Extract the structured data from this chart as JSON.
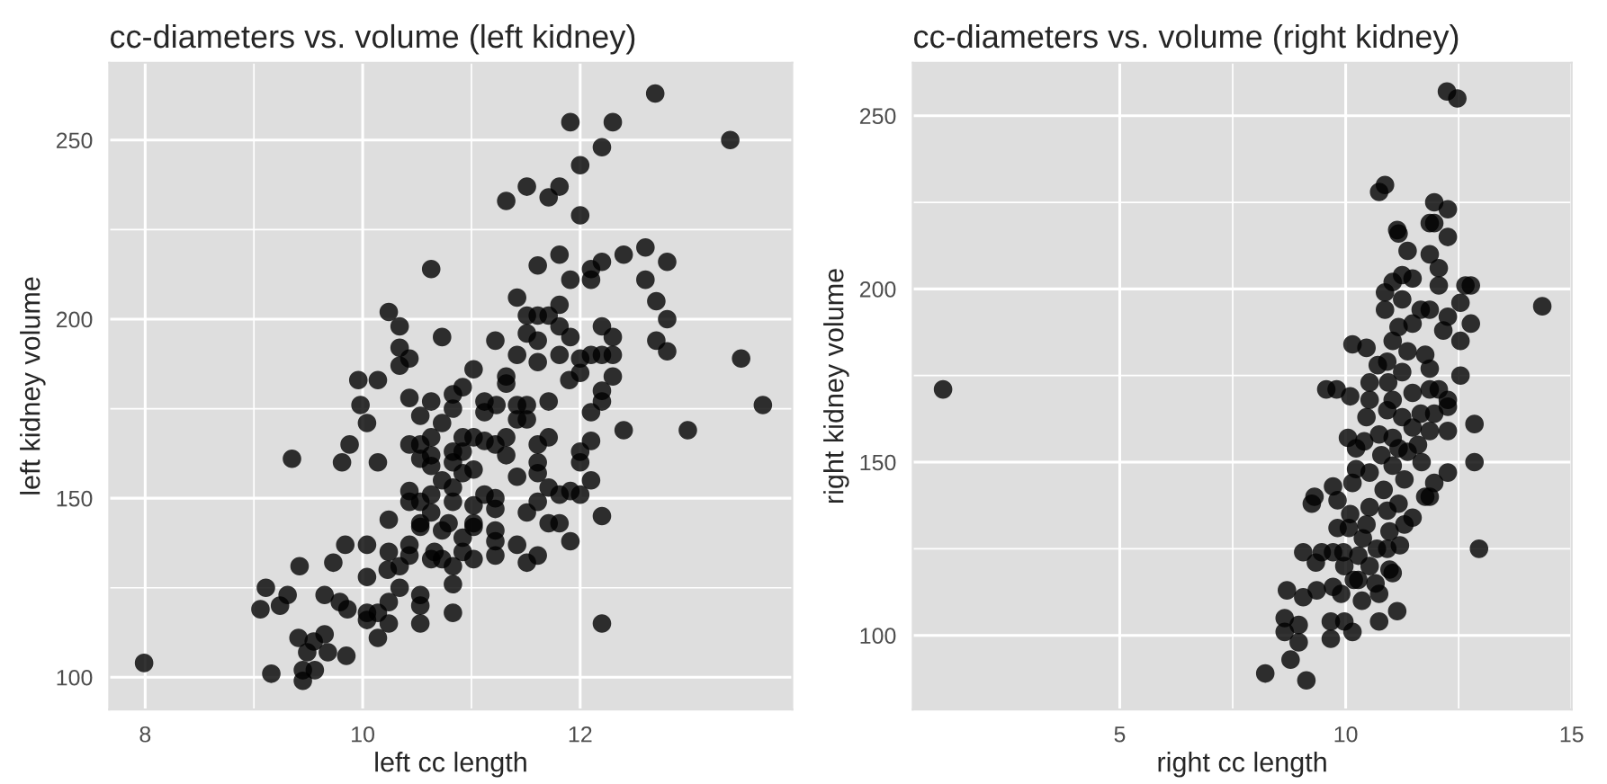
{
  "chart_data": [
    {
      "type": "scatter",
      "title": "cc-diameters vs. volume (left kidney)",
      "xlabel": "left cc length",
      "ylabel": "left kidney volume",
      "color": "#000000",
      "grid": true,
      "xlim": [
        7.67,
        13.95
      ],
      "ylim": [
        91,
        271.6
      ],
      "xticks": [
        8,
        10,
        12
      ],
      "yticks": [
        100,
        150,
        200,
        250
      ],
      "x": [
        7.99,
        12.69,
        11.91,
        12.3,
        13.38,
        12.2,
        12.0,
        11.51,
        11.81,
        11.71,
        11.32,
        12.0,
        12.6,
        12.8,
        12.4,
        11.81,
        12.2,
        11.61,
        12.1,
        10.63,
        12.1,
        11.91,
        12.6,
        11.42,
        12.7,
        11.81,
        11.51,
        11.71,
        11.61,
        12.8,
        10.24,
        10.34,
        11.81,
        12.2,
        11.51,
        11.91,
        10.73,
        12.3,
        11.61,
        11.22,
        12.7,
        10.34,
        11.42,
        10.43,
        11.81,
        13.48,
        12.0,
        12.1,
        12.2,
        12.3,
        12.8,
        11.61,
        10.34,
        12.0,
        12.3,
        11.02,
        11.9,
        11.32,
        9.96,
        10.14,
        10.92,
        11.32,
        10.43,
        10.83,
        12.2,
        12.2,
        10.63,
        11.12,
        11.71,
        11.23,
        11.42,
        11.51,
        13.68,
        9.98,
        10.83,
        12.1,
        11.12,
        10.53,
        11.42,
        11.51,
        10.04,
        10.73,
        12.99,
        12.4,
        10.92,
        10.63,
        11.02,
        11.32,
        11.71,
        12.1,
        11.12,
        11.22,
        10.53,
        10.43,
        10.83,
        10.92,
        11.61,
        10.63,
        11.32,
        12.0,
        9.88,
        9.35,
        9.81,
        10.14,
        10.53,
        10.83,
        11.61,
        12.0,
        10.63,
        11.02,
        10.92,
        11.42,
        11.61,
        12.1,
        11.71,
        11.81,
        11.91,
        12.0,
        10.43,
        10.63,
        11.12,
        11.22,
        10.83,
        10.73,
        10.43,
        10.53,
        10.83,
        11.61,
        11.02,
        11.22,
        11.51,
        10.63,
        11.71,
        11.81,
        12.2,
        10.24,
        10.53,
        11.02,
        10.79,
        11.22,
        10.73,
        10.53,
        11.02,
        10.92,
        11.22,
        11.91,
        10.04,
        10.43,
        11.42,
        9.84,
        10.24,
        10.92,
        10.66,
        10.43,
        11.22,
        11.61,
        10.63,
        11.02,
        11.51,
        10.73,
        10.34,
        10.23,
        9.42,
        10.83,
        9.73,
        10.04,
        10.83,
        10.34,
        9.11,
        9.65,
        10.53,
        9.31,
        9.79,
        10.24,
        9.24,
        10.53,
        9.06,
        9.86,
        10.04,
        10.83,
        10.14,
        10.04,
        10.24,
        10.53,
        12.2,
        9.41,
        9.65,
        10.14,
        9.55,
        9.49,
        9.68,
        9.85,
        9.16,
        9.45,
        9.56,
        9.45
      ],
      "values": [
        104,
        263,
        255,
        255,
        250,
        248,
        243,
        237,
        237,
        234,
        233,
        229,
        220,
        216,
        218,
        218,
        216,
        215,
        214,
        214,
        211,
        211,
        211,
        206,
        205,
        204,
        201,
        201,
        201,
        200,
        202,
        198,
        198,
        198,
        196,
        195,
        195,
        195,
        194,
        194,
        194,
        192,
        190,
        189,
        190,
        189,
        189,
        190,
        190,
        190,
        191,
        188,
        187,
        185,
        184,
        186,
        183,
        184,
        183,
        183,
        181,
        182,
        178,
        179,
        180,
        177,
        177,
        177,
        177,
        176,
        176,
        176,
        176,
        176,
        175,
        174,
        174,
        173,
        172,
        172,
        171,
        171,
        169,
        169,
        167,
        167,
        167,
        167,
        167,
        166,
        166,
        165,
        165,
        165,
        163,
        163,
        165,
        162,
        162,
        163,
        165,
        161,
        160,
        160,
        161,
        160,
        160,
        160,
        159,
        158,
        157,
        156,
        157,
        155,
        153,
        151,
        152,
        151,
        152,
        151,
        151,
        150,
        153,
        155,
        149,
        149,
        149,
        149,
        148,
        147,
        146,
        146,
        143,
        143,
        145,
        144,
        143,
        143,
        143,
        141,
        141,
        142,
        142,
        139,
        138,
        138,
        137,
        137,
        137,
        137,
        135,
        135,
        135,
        134,
        134,
        134,
        133,
        133,
        132,
        133,
        131,
        130,
        131,
        131,
        132,
        128,
        126,
        125,
        125,
        123,
        123,
        123,
        121,
        121,
        120,
        120,
        119,
        119,
        118,
        118,
        118,
        116,
        115,
        115,
        115,
        111,
        112,
        111,
        110,
        107,
        107,
        106,
        101,
        102,
        102,
        99
      ]
    },
    {
      "type": "scatter",
      "title": "cc-diameters vs. volume (right kidney)",
      "xlabel": "right cc length",
      "ylabel": "right kidney volume",
      "color": "#000000",
      "grid": true,
      "xlim": [
        0.42,
        15.0
      ],
      "ylim": [
        78.6,
        265.3
      ],
      "xticks": [
        5,
        10,
        15
      ],
      "yticks": [
        100,
        150,
        200,
        250
      ],
      "x": [
        1.09,
        14.35,
        12.24,
        12.47,
        10.87,
        10.74,
        11.96,
        12.26,
        11.86,
        11.96,
        11.14,
        11.17,
        12.26,
        11.37,
        11.86,
        12.06,
        11.25,
        11.48,
        11.04,
        12.06,
        12.65,
        12.77,
        10.87,
        11.25,
        12.54,
        11.86,
        11.66,
        10.87,
        11.48,
        12.26,
        12.77,
        12.16,
        11.17,
        12.54,
        11.04,
        10.15,
        10.46,
        11.37,
        11.76,
        10.92,
        10.71,
        11.86,
        11.25,
        12.54,
        10.94,
        10.53,
        12.06,
        11.86,
        9.57,
        9.8,
        10.1,
        11.48,
        12.26,
        10.53,
        11.04,
        12.26,
        10.92,
        11.96,
        11.66,
        11.25,
        10.46,
        12.85,
        11.48,
        11.86,
        12.26,
        10.74,
        11.04,
        10.05,
        10.41,
        11.6,
        10.23,
        11.17,
        11.37,
        10.79,
        11.68,
        12.85,
        10.23,
        11.04,
        10.53,
        12.26,
        11.3,
        11.96,
        9.72,
        10.15,
        10.84,
        11.76,
        11.86,
        9.31,
        9.82,
        11.17,
        9.25,
        10.53,
        11.48,
        10.1,
        10.92,
        10.46,
        11.3,
        10.07,
        9.82,
        10.97,
        10.38,
        11.2,
        12.95,
        10.69,
        10.92,
        9.06,
        9.95,
        9.47,
        9.72,
        10.28,
        9.97,
        9.34,
        10.53,
        10.97,
        11.04,
        10.18,
        10.28,
        10.66,
        9.36,
        8.7,
        9.9,
        10.36,
        10.74,
        9.72,
        9.06,
        11.14,
        8.65,
        8.96,
        9.67,
        10.74,
        10.15,
        8.65,
        9.97,
        8.96,
        9.67,
        8.78,
        8.22,
        9.13
      ],
      "values": [
        171,
        195,
        257,
        255,
        230,
        228,
        225,
        223,
        219,
        219,
        217,
        216,
        215,
        211,
        210,
        206,
        204,
        203,
        202,
        201,
        201,
        201,
        199,
        197,
        196,
        194,
        194,
        194,
        190,
        192,
        190,
        188,
        189,
        185,
        185,
        184,
        183,
        182,
        181,
        179,
        178,
        177,
        176,
        175,
        173,
        173,
        171,
        171,
        171,
        171,
        169,
        170,
        168,
        168,
        168,
        166,
        165,
        164,
        164,
        163,
        163,
        161,
        160,
        159,
        159,
        158,
        157,
        157,
        156,
        155,
        154,
        154,
        153,
        152,
        150,
        150,
        148,
        149,
        147,
        147,
        145,
        144,
        143,
        144,
        142,
        140,
        140,
        140,
        139,
        138,
        138,
        137,
        134,
        135,
        136,
        132,
        132,
        131,
        131,
        130,
        128,
        126,
        125,
        125,
        125,
        124,
        124,
        124,
        124,
        123,
        120,
        121,
        120,
        119,
        118,
        116,
        116,
        115,
        113,
        113,
        112,
        110,
        112,
        114,
        111,
        107,
        105,
        103,
        104,
        104,
        101,
        101,
        104,
        98,
        99,
        93,
        89,
        87
      ]
    }
  ]
}
